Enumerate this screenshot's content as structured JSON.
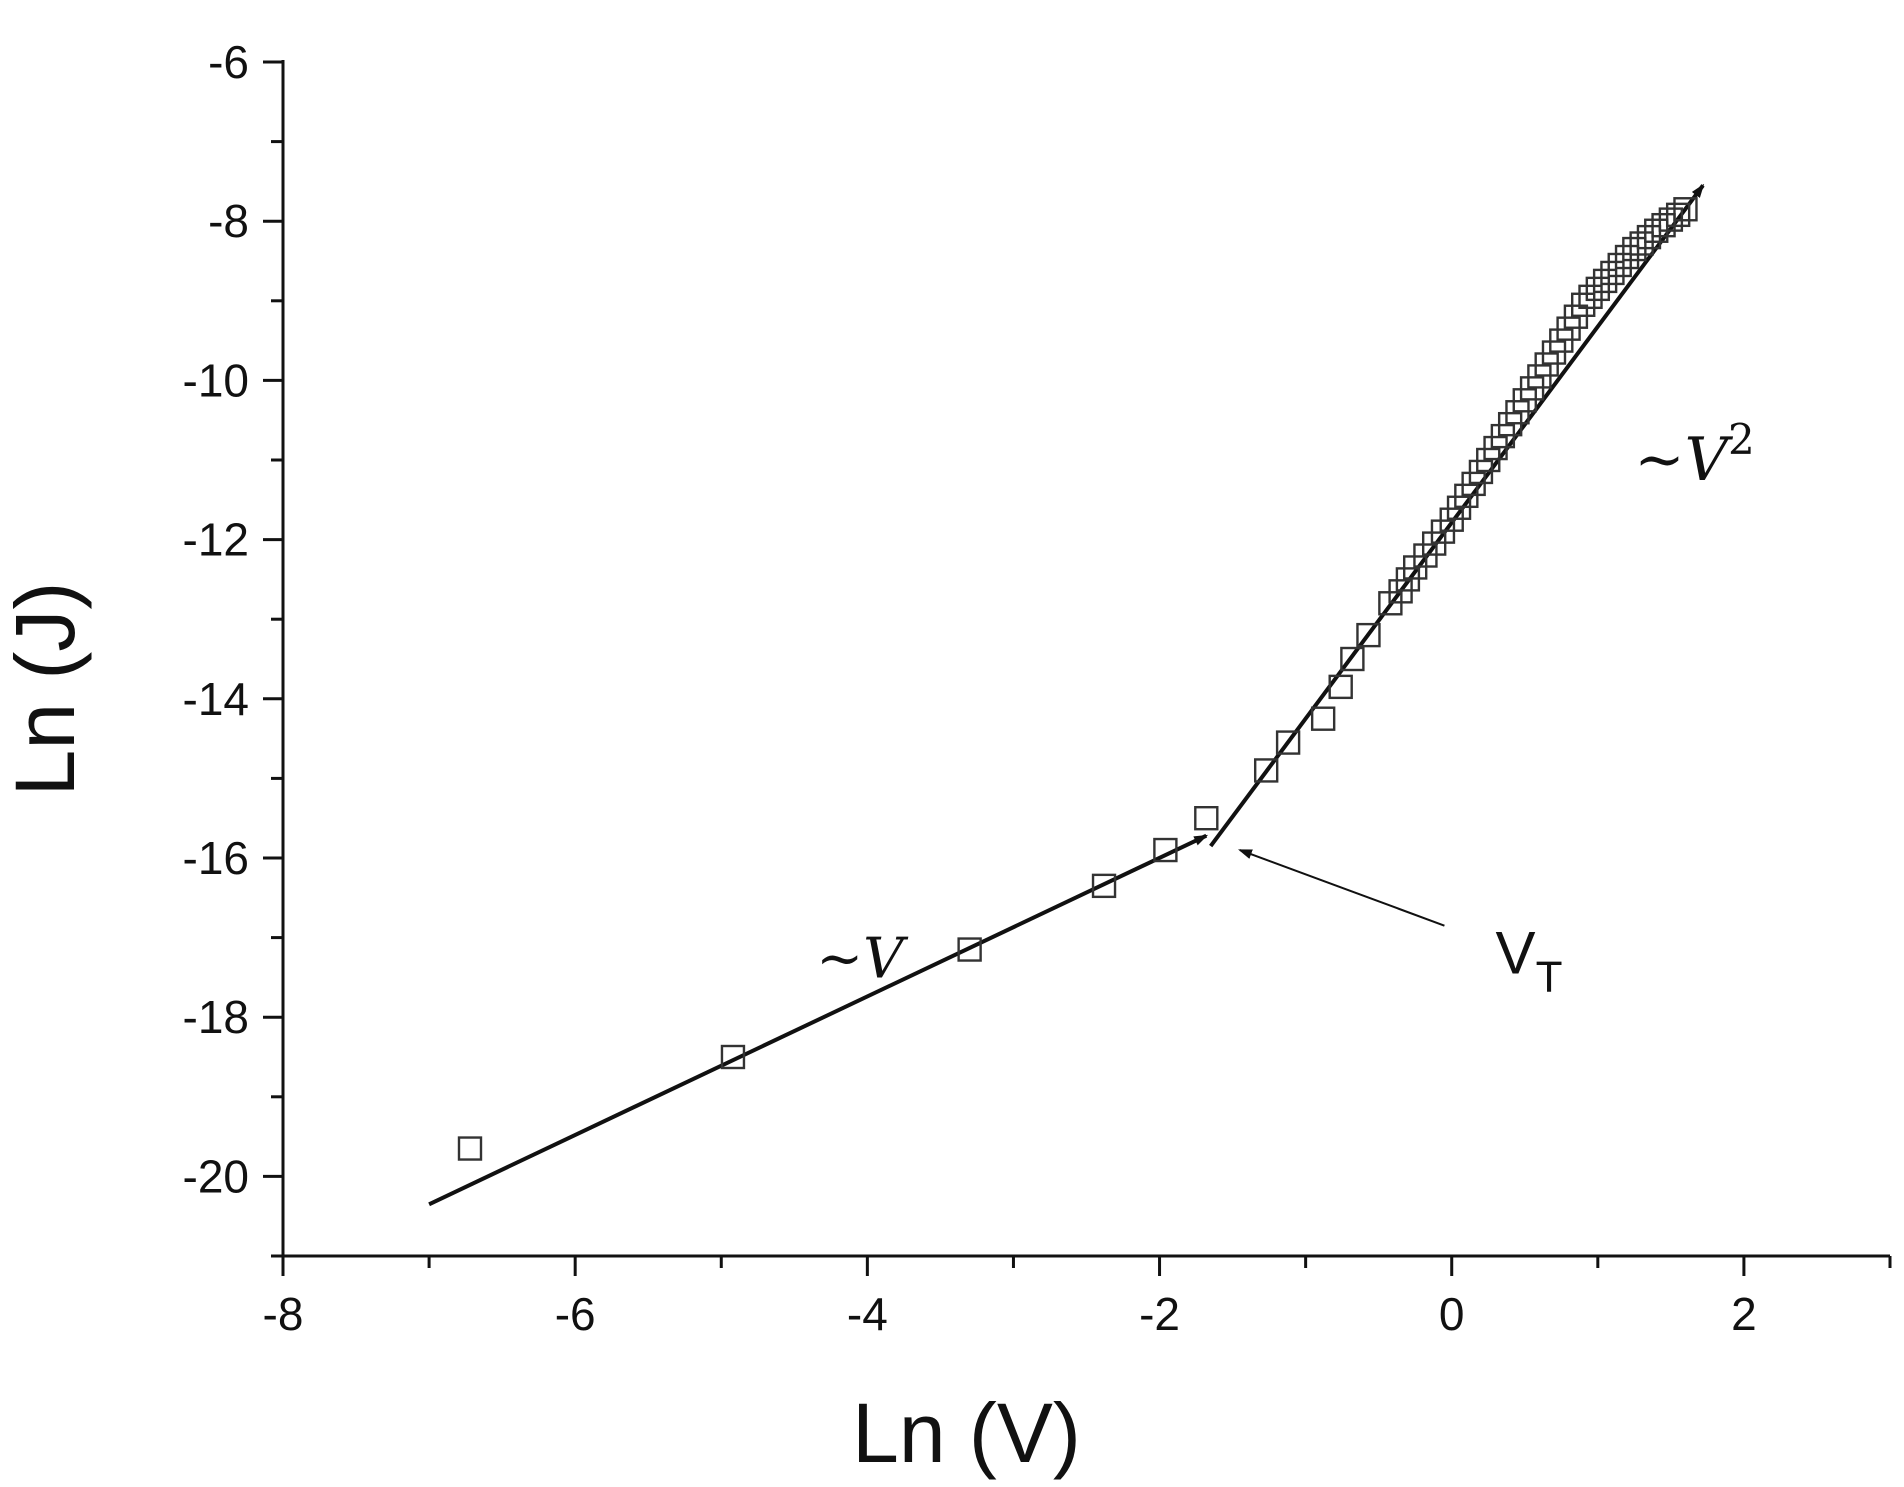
{
  "chart_data": {
    "type": "scatter",
    "title": "",
    "xlabel": "Ln (V)",
    "ylabel": "Ln (J)",
    "xlim": [
      -8,
      3
    ],
    "ylim": [
      -21,
      -6
    ],
    "x_ticks": [
      -8,
      -6,
      -4,
      -2,
      0,
      2
    ],
    "y_ticks": [
      -6,
      -8,
      -10,
      -12,
      -14,
      -16,
      -18,
      -20
    ],
    "grid": false,
    "marker": "open-square",
    "series": [
      {
        "x": [
          -6.72,
          -4.92,
          -3.3,
          -2.38,
          -1.96,
          -1.68,
          -1.27,
          -1.12,
          -0.88,
          -0.76,
          -0.68,
          -0.57,
          -0.42,
          -0.35,
          -0.3,
          -0.25,
          -0.18,
          -0.12,
          -0.06,
          0.0,
          0.05,
          0.1,
          0.15,
          0.2,
          0.25,
          0.3,
          0.35,
          0.4,
          0.45,
          0.5,
          0.55,
          0.6,
          0.65,
          0.7,
          0.75,
          0.8,
          0.85,
          0.9,
          0.95,
          1.0,
          1.05,
          1.1,
          1.15,
          1.2,
          1.25,
          1.3,
          1.35,
          1.4,
          1.45,
          1.5,
          1.55,
          1.6
        ],
        "y": [
          -19.65,
          -18.5,
          -17.15,
          -16.35,
          -15.9,
          -15.5,
          -14.9,
          -14.55,
          -14.25,
          -13.85,
          -13.5,
          -13.2,
          -12.8,
          -12.65,
          -12.5,
          -12.35,
          -12.2,
          -12.05,
          -11.9,
          -11.75,
          -11.6,
          -11.45,
          -11.3,
          -11.15,
          -11.0,
          -10.85,
          -10.7,
          -10.55,
          -10.4,
          -10.25,
          -10.1,
          -9.95,
          -9.8,
          -9.65,
          -9.5,
          -9.35,
          -9.2,
          -9.05,
          -8.95,
          -8.85,
          -8.75,
          -8.65,
          -8.55,
          -8.45,
          -8.35,
          -8.28,
          -8.2,
          -8.12,
          -8.05,
          -7.98,
          -7.92,
          -7.85
        ]
      }
    ],
    "fit_lines": [
      {
        "label": "~V",
        "x": [
          -7.0,
          -1.68
        ],
        "y": [
          -20.35,
          -15.72
        ]
      },
      {
        "label": "~V",
        "x": [
          -1.65,
          1.72
        ],
        "y": [
          -15.85,
          -7.55
        ]
      }
    ],
    "annotations": {
      "linear_label": "~V",
      "square_label_base": "~V",
      "square_label_exp": "2",
      "threshold_label_main": "V",
      "threshold_label_sub": "T",
      "threshold_arrow": {
        "from": [
          -0.05,
          -16.85
        ],
        "to": [
          -1.45,
          -15.9
        ]
      },
      "label_positions": {
        "linear": [
          -4.35,
          -17.5
        ],
        "square": [
          1.25,
          -11.25
        ],
        "threshold": [
          0.3,
          -17.45
        ]
      }
    }
  }
}
